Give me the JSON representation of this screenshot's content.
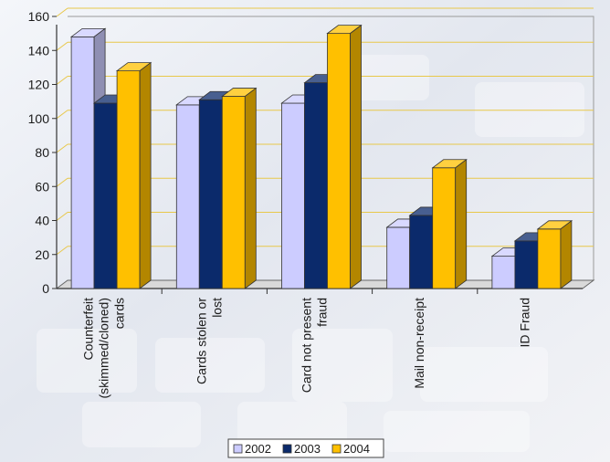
{
  "chart_data": {
    "type": "bar",
    "title": "",
    "xlabel": "",
    "ylabel": "",
    "ylim": [
      0,
      160
    ],
    "yticks": [
      0,
      20,
      40,
      60,
      80,
      100,
      120,
      140,
      160
    ],
    "grid": true,
    "legend_position": "bottom",
    "categories": [
      [
        "Counterfeit",
        "(skimmed/cloned)",
        "cards"
      ],
      [
        "Cards stolen or",
        "lost"
      ],
      [
        "Card not present",
        "fraud"
      ],
      [
        "Mail non-receipt"
      ],
      [
        "ID Fraud"
      ]
    ],
    "series": [
      {
        "name": "2002",
        "color": "#ccccff",
        "values": [
          148,
          108,
          109,
          36,
          19
        ]
      },
      {
        "name": "2003",
        "color": "#0b2a6b",
        "values": [
          109,
          111,
          121,
          43,
          28
        ]
      },
      {
        "name": "2004",
        "color": "#ffc000",
        "values": [
          128,
          113,
          150,
          71,
          35
        ]
      }
    ],
    "colors": {
      "gridline": "#e8c84a",
      "axis": "#333333"
    }
  }
}
